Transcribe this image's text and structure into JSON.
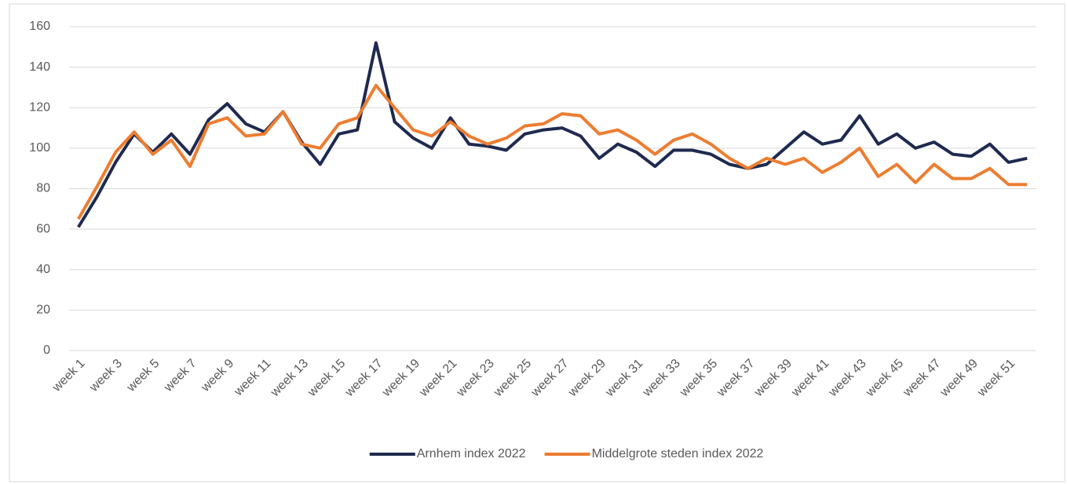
{
  "chart_data": {
    "type": "line",
    "categories": [
      "week 1",
      null,
      "week 3",
      null,
      "week 5",
      null,
      "week 7",
      null,
      "week 9",
      null,
      "week 11",
      null,
      "week 13",
      null,
      "week 15",
      null,
      "week 17",
      null,
      "week 19",
      null,
      "week 21",
      null,
      "week 23",
      null,
      "week 25",
      null,
      "week 27",
      null,
      "week 29",
      null,
      "week 31",
      null,
      "week 33",
      null,
      "week 35",
      null,
      "week 37",
      null,
      "week 39",
      null,
      "week 41",
      null,
      "week 43",
      null,
      "week 45",
      null,
      "week 47",
      null,
      "week 49",
      null,
      "week 51",
      null
    ],
    "series": [
      {
        "name": "Arnhem index 2022",
        "color": "#1f2a4f",
        "values": [
          61,
          76,
          93,
          107,
          98,
          107,
          97,
          114,
          122,
          112,
          108,
          118,
          103,
          92,
          107,
          109,
          152,
          113,
          105,
          100,
          115,
          102,
          101,
          99,
          107,
          109,
          110,
          106,
          95,
          102,
          98,
          91,
          99,
          99,
          97,
          92,
          90,
          92,
          100,
          108,
          102,
          104,
          116,
          102,
          107,
          100,
          103,
          97,
          96,
          102,
          93,
          95
        ]
      },
      {
        "name": "Middelgrote steden index 2022",
        "color": "#ed7d31",
        "values": [
          65,
          81,
          98,
          108,
          97,
          104,
          91,
          112,
          115,
          106,
          107,
          118,
          102,
          100,
          112,
          115,
          131,
          120,
          109,
          106,
          113,
          106,
          102,
          105,
          111,
          112,
          117,
          116,
          107,
          109,
          104,
          97,
          104,
          107,
          102,
          95,
          90,
          95,
          92,
          95,
          88,
          93,
          100,
          86,
          92,
          83,
          92,
          85,
          85,
          90,
          82,
          82
        ]
      }
    ],
    "ylim": [
      0,
      160
    ],
    "yticks": [
      0,
      20,
      40,
      60,
      80,
      100,
      120,
      140,
      160
    ],
    "grid": true,
    "legend": "bottom"
  }
}
